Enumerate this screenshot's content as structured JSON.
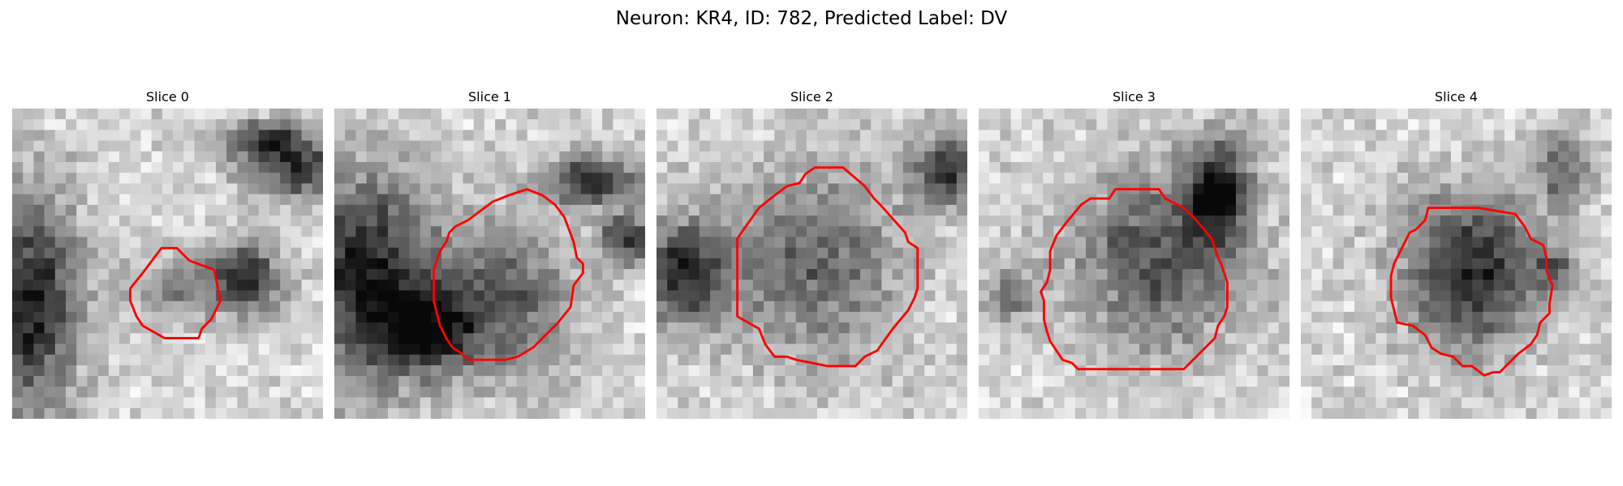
{
  "figure": {
    "title": "Neuron: KR4, ID: 782, Predicted Label: DV",
    "contour_color": "#ff0000",
    "colormap": "gray"
  },
  "panels": [
    {
      "title": "Slice 0",
      "dark_blobs": [
        [
          0.06,
          0.63,
          0.16,
          0.36,
          0.95
        ],
        [
          0.75,
          0.55,
          0.12,
          0.12,
          0.9
        ],
        [
          0.92,
          0.2,
          0.17,
          0.08,
          0.85
        ],
        [
          0.82,
          0.1,
          0.15,
          0.06,
          0.8
        ],
        [
          0.52,
          0.58,
          0.13,
          0.11,
          0.4
        ]
      ],
      "contour": [
        [
          0.48,
          0.45
        ],
        [
          0.53,
          0.45
        ],
        [
          0.57,
          0.49
        ],
        [
          0.65,
          0.52
        ],
        [
          0.66,
          0.57
        ],
        [
          0.67,
          0.62
        ],
        [
          0.66,
          0.64
        ],
        [
          0.64,
          0.68
        ],
        [
          0.61,
          0.71
        ],
        [
          0.6,
          0.74
        ],
        [
          0.58,
          0.74
        ],
        [
          0.52,
          0.74
        ],
        [
          0.49,
          0.74
        ],
        [
          0.42,
          0.7
        ],
        [
          0.4,
          0.67
        ],
        [
          0.38,
          0.62
        ],
        [
          0.38,
          0.58
        ],
        [
          0.42,
          0.53
        ]
      ]
    },
    {
      "title": "Slice 1",
      "dark_blobs": [
        [
          0.1,
          0.55,
          0.22,
          0.35,
          0.95
        ],
        [
          0.3,
          0.71,
          0.15,
          0.13,
          0.8
        ],
        [
          0.83,
          0.23,
          0.16,
          0.08,
          0.85
        ],
        [
          0.95,
          0.42,
          0.1,
          0.08,
          0.8
        ],
        [
          0.55,
          0.62,
          0.22,
          0.24,
          0.65
        ]
      ],
      "contour": [
        [
          0.56,
          0.28
        ],
        [
          0.62,
          0.26
        ],
        [
          0.67,
          0.28
        ],
        [
          0.71,
          0.31
        ],
        [
          0.74,
          0.35
        ],
        [
          0.77,
          0.43
        ],
        [
          0.78,
          0.48
        ],
        [
          0.8,
          0.5
        ],
        [
          0.8,
          0.53
        ],
        [
          0.77,
          0.57
        ],
        [
          0.76,
          0.64
        ],
        [
          0.72,
          0.69
        ],
        [
          0.64,
          0.77
        ],
        [
          0.59,
          0.8
        ],
        [
          0.55,
          0.81
        ],
        [
          0.43,
          0.81
        ],
        [
          0.41,
          0.79
        ],
        [
          0.38,
          0.77
        ],
        [
          0.36,
          0.74
        ],
        [
          0.34,
          0.7
        ],
        [
          0.32,
          0.62
        ],
        [
          0.32,
          0.52
        ],
        [
          0.34,
          0.46
        ],
        [
          0.36,
          0.43
        ],
        [
          0.37,
          0.4
        ],
        [
          0.39,
          0.38
        ],
        [
          0.43,
          0.36
        ],
        [
          0.47,
          0.33
        ],
        [
          0.51,
          0.3
        ]
      ]
    },
    {
      "title": "Slice 2",
      "dark_blobs": [
        [
          0.08,
          0.53,
          0.14,
          0.17,
          0.9
        ],
        [
          0.93,
          0.2,
          0.12,
          0.12,
          0.8
        ],
        [
          0.5,
          0.5,
          0.28,
          0.3,
          0.6
        ]
      ],
      "contour": [
        [
          0.51,
          0.19
        ],
        [
          0.6,
          0.19
        ],
        [
          0.67,
          0.25
        ],
        [
          0.7,
          0.29
        ],
        [
          0.72,
          0.31
        ],
        [
          0.8,
          0.4
        ],
        [
          0.81,
          0.43
        ],
        [
          0.84,
          0.45
        ],
        [
          0.84,
          0.52
        ],
        [
          0.84,
          0.58
        ],
        [
          0.83,
          0.61
        ],
        [
          0.81,
          0.65
        ],
        [
          0.76,
          0.71
        ],
        [
          0.71,
          0.78
        ],
        [
          0.67,
          0.8
        ],
        [
          0.64,
          0.83
        ],
        [
          0.6,
          0.83
        ],
        [
          0.55,
          0.83
        ],
        [
          0.45,
          0.81
        ],
        [
          0.42,
          0.8
        ],
        [
          0.38,
          0.8
        ],
        [
          0.35,
          0.76
        ],
        [
          0.33,
          0.71
        ],
        [
          0.26,
          0.67
        ],
        [
          0.26,
          0.61
        ],
        [
          0.26,
          0.42
        ],
        [
          0.28,
          0.39
        ],
        [
          0.33,
          0.32
        ],
        [
          0.38,
          0.28
        ],
        [
          0.42,
          0.25
        ],
        [
          0.46,
          0.24
        ],
        [
          0.48,
          0.21
        ]
      ]
    },
    {
      "title": "Slice 3",
      "dark_blobs": [
        [
          0.77,
          0.26,
          0.1,
          0.17,
          0.9
        ],
        [
          0.58,
          0.48,
          0.28,
          0.28,
          0.7
        ],
        [
          0.1,
          0.6,
          0.08,
          0.1,
          0.5
        ]
      ],
      "contour": [
        [
          0.44,
          0.26
        ],
        [
          0.58,
          0.26
        ],
        [
          0.6,
          0.29
        ],
        [
          0.62,
          0.3
        ],
        [
          0.66,
          0.32
        ],
        [
          0.7,
          0.36
        ],
        [
          0.75,
          0.42
        ],
        [
          0.77,
          0.48
        ],
        [
          0.78,
          0.5
        ],
        [
          0.8,
          0.56
        ],
        [
          0.8,
          0.61
        ],
        [
          0.8,
          0.64
        ],
        [
          0.79,
          0.67
        ],
        [
          0.77,
          0.7
        ],
        [
          0.76,
          0.74
        ],
        [
          0.71,
          0.79
        ],
        [
          0.66,
          0.84
        ],
        [
          0.63,
          0.84
        ],
        [
          0.5,
          0.84
        ],
        [
          0.32,
          0.84
        ],
        [
          0.3,
          0.82
        ],
        [
          0.27,
          0.81
        ],
        [
          0.25,
          0.78
        ],
        [
          0.23,
          0.75
        ],
        [
          0.22,
          0.72
        ],
        [
          0.21,
          0.68
        ],
        [
          0.21,
          0.62
        ],
        [
          0.2,
          0.59
        ],
        [
          0.22,
          0.56
        ],
        [
          0.23,
          0.52
        ],
        [
          0.23,
          0.46
        ],
        [
          0.25,
          0.41
        ],
        [
          0.28,
          0.37
        ],
        [
          0.33,
          0.31
        ],
        [
          0.36,
          0.29
        ],
        [
          0.42,
          0.29
        ]
      ]
    },
    {
      "title": "Slice 4",
      "dark_blobs": [
        [
          0.55,
          0.52,
          0.22,
          0.24,
          0.95
        ],
        [
          0.85,
          0.2,
          0.08,
          0.14,
          0.6
        ],
        [
          0.82,
          0.53,
          0.06,
          0.07,
          0.55
        ]
      ],
      "contour": [
        [
          0.41,
          0.32
        ],
        [
          0.43,
          0.32
        ],
        [
          0.48,
          0.32
        ],
        [
          0.51,
          0.32
        ],
        [
          0.57,
          0.32
        ],
        [
          0.69,
          0.34
        ],
        [
          0.72,
          0.38
        ],
        [
          0.74,
          0.42
        ],
        [
          0.78,
          0.44
        ],
        [
          0.79,
          0.48
        ],
        [
          0.79,
          0.52
        ],
        [
          0.8,
          0.55
        ],
        [
          0.81,
          0.57
        ],
        [
          0.8,
          0.63
        ],
        [
          0.8,
          0.66
        ],
        [
          0.77,
          0.69
        ],
        [
          0.76,
          0.73
        ],
        [
          0.74,
          0.76
        ],
        [
          0.7,
          0.79
        ],
        [
          0.67,
          0.82
        ],
        [
          0.64,
          0.85
        ],
        [
          0.62,
          0.85
        ],
        [
          0.59,
          0.86
        ],
        [
          0.55,
          0.83
        ],
        [
          0.52,
          0.83
        ],
        [
          0.49,
          0.8
        ],
        [
          0.45,
          0.79
        ],
        [
          0.42,
          0.77
        ],
        [
          0.4,
          0.73
        ],
        [
          0.36,
          0.7
        ],
        [
          0.31,
          0.69
        ],
        [
          0.3,
          0.65
        ],
        [
          0.29,
          0.61
        ],
        [
          0.29,
          0.54
        ],
        [
          0.3,
          0.5
        ],
        [
          0.32,
          0.46
        ],
        [
          0.33,
          0.44
        ],
        [
          0.35,
          0.4
        ],
        [
          0.37,
          0.39
        ],
        [
          0.4,
          0.36
        ]
      ]
    }
  ]
}
